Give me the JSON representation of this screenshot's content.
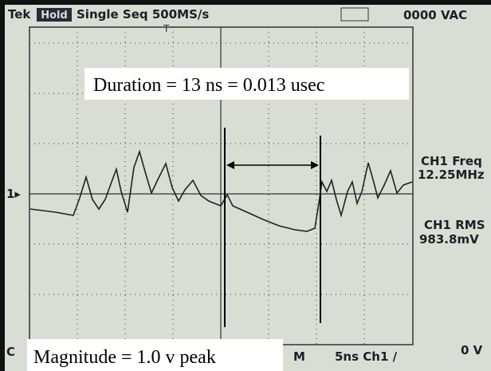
{
  "header": {
    "brand": "Tek",
    "mode": "Hold",
    "acquisition": "Single Seq 500MS/s",
    "meter": "0000 VAC",
    "trigger_marker": "T"
  },
  "measurements": {
    "duration": "Duration = 13 ns = 0.013 usec",
    "magnitude": "Magnitude = 1.0 v peak"
  },
  "readouts": [
    {
      "label": "CH1 Freq",
      "value": "12.25MHz"
    },
    {
      "label": "CH1 RMS",
      "value": "983.8mV"
    }
  ],
  "channel_marker": "1▸",
  "footer": {
    "left": "C",
    "timebase_marker": "M",
    "timebase": "5ns Ch1 /",
    "right": "0 V"
  }
}
